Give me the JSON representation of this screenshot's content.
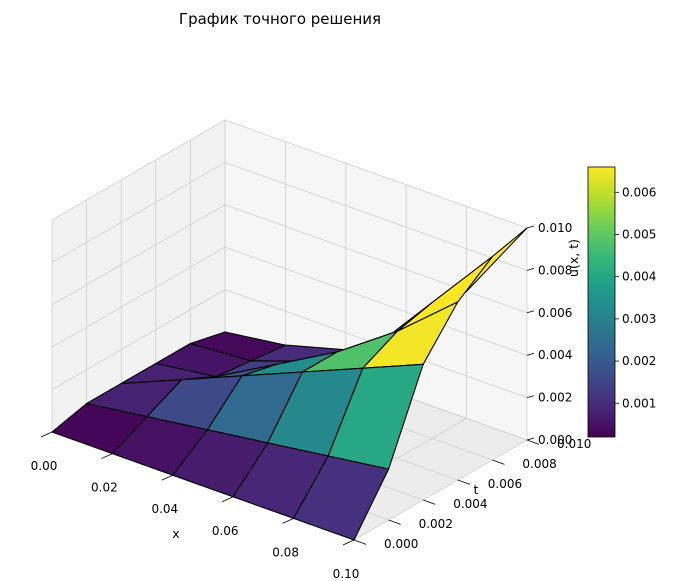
{
  "chart_data": {
    "type": "surface3d",
    "title": "График точного решения",
    "xlabel": "x",
    "ylabel": "t",
    "zlabel": "u(x, t)",
    "xlim": [
      0,
      0.1
    ],
    "ylim": [
      0,
      0.01
    ],
    "zlim": [
      0,
      0.01
    ],
    "x_ticks": [
      "0.00",
      "0.02",
      "0.04",
      "0.06",
      "0.08",
      "0.10"
    ],
    "y_ticks": [
      "0.000",
      "0.002",
      "0.004",
      "0.006",
      "0.008",
      "0.010"
    ],
    "z_ticks": [
      "0.000",
      "0.002",
      "0.004",
      "0.006",
      "0.008",
      "0.010"
    ],
    "colormap": "viridis",
    "colorbar": {
      "range": [
        0.0002,
        0.0066
      ],
      "ticks": [
        "0.001",
        "0.002",
        "0.003",
        "0.004",
        "0.005",
        "0.006"
      ]
    },
    "grid": true,
    "x": [
      0,
      0.02,
      0.04,
      0.06,
      0.08,
      0.1
    ],
    "t": [
      0,
      0.002,
      0.004,
      0.006,
      0.008,
      0.01
    ],
    "u": [
      [
        0.0,
        0.0,
        0.0,
        0.0,
        0.0,
        0.0
      ],
      [
        0.0004,
        0.0008,
        0.0012,
        0.0016,
        0.002,
        0.0024
      ],
      [
        0.0004,
        0.0016,
        0.0028,
        0.004,
        0.0052,
        0.0064
      ],
      [
        0.0004,
        0.0008,
        0.0024,
        0.004,
        0.006,
        0.0084
      ],
      [
        0.0004,
        0.0006,
        0.0016,
        0.0032,
        0.0064,
        0.0096
      ],
      [
        0.0,
        0.0004,
        0.0012,
        0.003,
        0.006,
        0.01
      ]
    ]
  }
}
